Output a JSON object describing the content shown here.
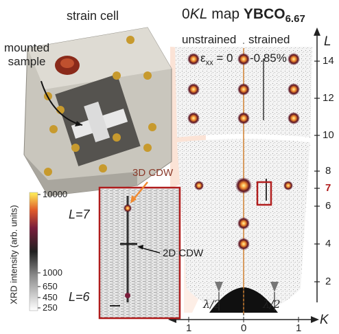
{
  "title_left": "strain cell",
  "title_right_prefix": "0",
  "title_right_italic": "KL",
  "title_right_mid": " map ",
  "title_right_bold": "YBCO",
  "title_right_sub": "6.67",
  "cell_label_line1": "mounted",
  "cell_label_line2": "sample",
  "col_unstrained": "unstrained",
  "col_strained": "strained",
  "eps_symbol": "ε",
  "eps_sub": "xx",
  "eps_value": "= 0",
  "strain_value": "-0.85%",
  "colorbar_title": "XRD intensity (arb. units)",
  "colorbar_ticks": [
    "10000",
    "1000",
    "650",
    "450",
    "250"
  ],
  "colors": {
    "accent_red": "#b01c1c",
    "cdw_orange": "#f08a30",
    "wedge": "#fbe3d6"
  },
  "inset_L_top": "L=7",
  "inset_L_bottom": "L=6",
  "label_3d": "3D CDW",
  "label_2d": "2D CDW",
  "lambda_left": "λ/2",
  "lambda_right": "λ/2",
  "axis_L_label": "L",
  "axis_L_ticks": [
    "14",
    "12",
    "10",
    "8",
    "7",
    "6",
    "4",
    "2"
  ],
  "axis_K_label": "K",
  "axis_K_ticks": [
    "1",
    "0",
    "1"
  ]
}
